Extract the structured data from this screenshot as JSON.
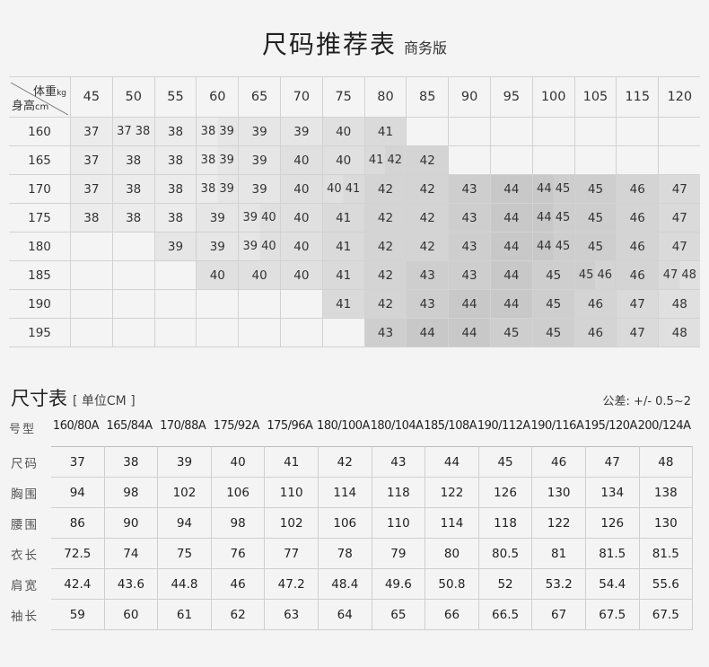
{
  "title": {
    "main": "尺码推荐表",
    "sub": "商务版"
  },
  "recommend": {
    "corner": {
      "weight": "体重",
      "weight_unit": "kg",
      "height": "身高",
      "height_unit": "cm"
    },
    "weights": [
      "45",
      "50",
      "55",
      "60",
      "65",
      "70",
      "75",
      "80",
      "85",
      "90",
      "95",
      "100",
      "105",
      "115",
      "120"
    ],
    "rows": [
      {
        "height": "160",
        "cells": [
          "37",
          "37 38",
          "38",
          "38 39",
          "39",
          "39",
          "40",
          "41",
          "",
          "",
          "",
          "",
          "",
          "",
          ""
        ]
      },
      {
        "height": "165",
        "cells": [
          "37",
          "38",
          "38",
          "38 39",
          "39",
          "40",
          "40",
          "41 42",
          "42",
          "",
          "",
          "",
          "",
          "",
          ""
        ]
      },
      {
        "height": "170",
        "cells": [
          "37",
          "38",
          "38",
          "38 39",
          "39",
          "40",
          "40 41",
          "42",
          "42",
          "43",
          "44",
          "44 45",
          "45",
          "46",
          "47"
        ]
      },
      {
        "height": "175",
        "cells": [
          "38",
          "38",
          "38",
          "39",
          "39 40",
          "40",
          "41",
          "42",
          "42",
          "43",
          "44",
          "44 45",
          "45",
          "46",
          "47"
        ]
      },
      {
        "height": "180",
        "cells": [
          "",
          "",
          "39",
          "39",
          "39 40",
          "40",
          "41",
          "42",
          "42",
          "43",
          "44",
          "44 45",
          "45",
          "46",
          "47"
        ]
      },
      {
        "height": "185",
        "cells": [
          "",
          "",
          "",
          "40",
          "40",
          "40",
          "41",
          "42",
          "43",
          "43",
          "44",
          "45",
          "45 46",
          "46",
          "47 48"
        ]
      },
      {
        "height": "190",
        "cells": [
          "",
          "",
          "",
          "",
          "",
          "",
          "41",
          "42",
          "43",
          "44",
          "44",
          "45",
          "46",
          "47",
          "48"
        ]
      },
      {
        "height": "195",
        "cells": [
          "",
          "",
          "",
          "",
          "",
          "",
          "",
          "43",
          "44",
          "44",
          "45",
          "45",
          "46",
          "47",
          "48"
        ]
      }
    ]
  },
  "size_table": {
    "title": "尺寸表",
    "unit": "[ 单位CM ]",
    "tolerance": "公差: +/- 0.5~2",
    "model_label": "号型",
    "models": [
      "160/80A",
      "165/84A",
      "170/88A",
      "175/92A",
      "175/96A",
      "180/100A",
      "180/104A",
      "185/108A",
      "190/112A",
      "190/116A",
      "195/120A",
      "200/124A"
    ],
    "rows": [
      {
        "label": "尺码",
        "values": [
          "37",
          "38",
          "39",
          "40",
          "41",
          "42",
          "43",
          "44",
          "45",
          "46",
          "47",
          "48"
        ]
      },
      {
        "label": "胸围",
        "values": [
          "94",
          "98",
          "102",
          "106",
          "110",
          "114",
          "118",
          "122",
          "126",
          "130",
          "134",
          "138"
        ]
      },
      {
        "label": "腰围",
        "values": [
          "86",
          "90",
          "94",
          "98",
          "102",
          "106",
          "110",
          "114",
          "118",
          "122",
          "126",
          "130"
        ]
      },
      {
        "label": "衣长",
        "values": [
          "72.5",
          "74",
          "75",
          "76",
          "77",
          "78",
          "79",
          "80",
          "80.5",
          "81",
          "81.5",
          "81.5"
        ]
      },
      {
        "label": "肩宽",
        "values": [
          "42.4",
          "43.6",
          "44.8",
          "46",
          "47.2",
          "48.4",
          "49.6",
          "50.8",
          "52",
          "53.2",
          "54.4",
          "55.6"
        ]
      },
      {
        "label": "袖长",
        "values": [
          "59",
          "60",
          "61",
          "62",
          "63",
          "64",
          "65",
          "66",
          "66.5",
          "67",
          "67.5",
          "67.5"
        ]
      }
    ]
  }
}
